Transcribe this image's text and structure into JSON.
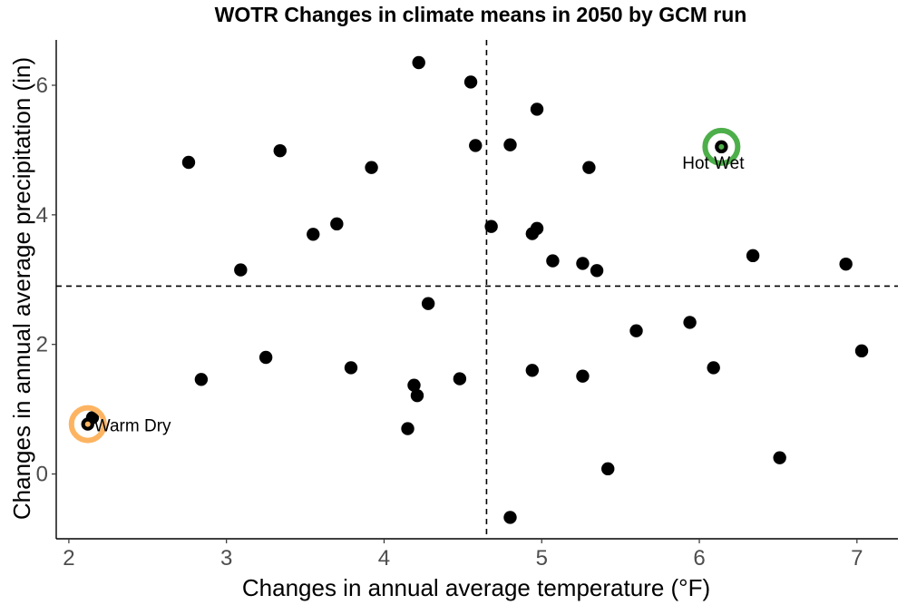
{
  "chart_data": {
    "type": "scatter",
    "title": "WOTR Changes in climate means in 2050 by GCM run",
    "xlabel": "Changes in annual average temperature (°F)",
    "ylabel": "Changes in annual average precipitation (in)",
    "xlim": [
      1.92,
      7.26
    ],
    "ylim": [
      -1.0,
      6.7
    ],
    "xticks": [
      "2",
      "3",
      "4",
      "5",
      "6",
      "7"
    ],
    "yticks": [
      "0",
      "2",
      "4",
      "6"
    ],
    "reference_lines": {
      "x": 4.65,
      "y": 2.9
    },
    "grid": false,
    "points": [
      {
        "x": 4.22,
        "y": 6.35
      },
      {
        "x": 4.55,
        "y": 6.05
      },
      {
        "x": 4.97,
        "y": 5.63
      },
      {
        "x": 4.58,
        "y": 5.07
      },
      {
        "x": 4.8,
        "y": 5.08
      },
      {
        "x": 6.14,
        "y": 5.05
      },
      {
        "x": 3.34,
        "y": 4.99
      },
      {
        "x": 2.76,
        "y": 4.81
      },
      {
        "x": 3.92,
        "y": 4.73
      },
      {
        "x": 5.3,
        "y": 4.73
      },
      {
        "x": 3.7,
        "y": 3.86
      },
      {
        "x": 4.68,
        "y": 3.82
      },
      {
        "x": 4.97,
        "y": 3.79
      },
      {
        "x": 3.55,
        "y": 3.7
      },
      {
        "x": 4.94,
        "y": 3.71
      },
      {
        "x": 6.34,
        "y": 3.37
      },
      {
        "x": 5.07,
        "y": 3.29
      },
      {
        "x": 5.26,
        "y": 3.25
      },
      {
        "x": 6.93,
        "y": 3.24
      },
      {
        "x": 3.09,
        "y": 3.15
      },
      {
        "x": 5.35,
        "y": 3.14
      },
      {
        "x": 4.28,
        "y": 2.63
      },
      {
        "x": 5.94,
        "y": 2.34
      },
      {
        "x": 5.6,
        "y": 2.21
      },
      {
        "x": 7.03,
        "y": 1.9
      },
      {
        "x": 3.25,
        "y": 1.8
      },
      {
        "x": 3.79,
        "y": 1.64
      },
      {
        "x": 6.09,
        "y": 1.64
      },
      {
        "x": 4.94,
        "y": 1.6
      },
      {
        "x": 5.26,
        "y": 1.51
      },
      {
        "x": 4.48,
        "y": 1.47
      },
      {
        "x": 2.84,
        "y": 1.46
      },
      {
        "x": 4.19,
        "y": 1.37
      },
      {
        "x": 4.21,
        "y": 1.21
      },
      {
        "x": 2.15,
        "y": 0.87
      },
      {
        "x": 2.12,
        "y": 0.77
      },
      {
        "x": 4.15,
        "y": 0.7
      },
      {
        "x": 6.51,
        "y": 0.25
      },
      {
        "x": 5.42,
        "y": 0.08
      },
      {
        "x": 4.8,
        "y": -0.67
      }
    ],
    "highlights": [
      {
        "label": "Hot Wet",
        "x": 6.14,
        "y": 5.05,
        "color": "#4daf4a"
      },
      {
        "label": "Warm Dry",
        "x": 2.12,
        "y": 0.77,
        "color": "#fdb462"
      }
    ],
    "point_color": "#000000"
  }
}
